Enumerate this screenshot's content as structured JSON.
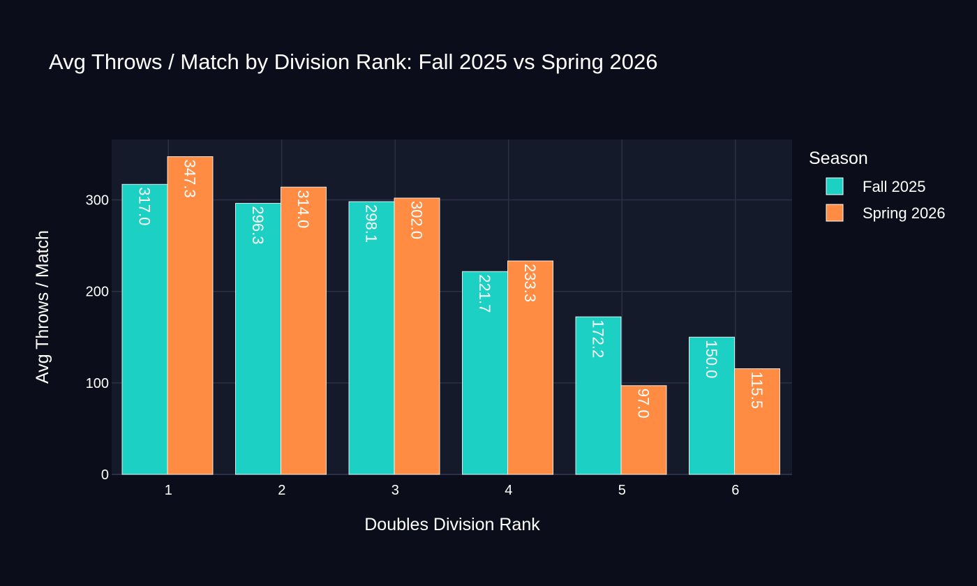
{
  "colors": {
    "background": "#0b0e1a",
    "plot_background": "#151a2b",
    "grid": "#2a3146",
    "fall": "#1cd1c4",
    "spring": "#ff8c42",
    "text": "#ffffff"
  },
  "chart_data": {
    "type": "bar",
    "title": "Avg Throws / Match by Division Rank: Fall 2025 vs Spring 2026",
    "xlabel": "Doubles Division Rank",
    "ylabel": "Avg Throws / Match",
    "categories": [
      "1",
      "2",
      "3",
      "4",
      "5",
      "6"
    ],
    "series": [
      {
        "name": "Fall 2025",
        "values": [
          317.0,
          296.3,
          298.1,
          221.7,
          172.2,
          150.0
        ],
        "labels": [
          "317.0",
          "296.3",
          "298.1",
          "221.7",
          "172.2",
          "150.0"
        ]
      },
      {
        "name": "Spring 2026",
        "values": [
          347.3,
          314.0,
          302.0,
          233.3,
          97.0,
          115.5
        ],
        "labels": [
          "347.3",
          "314.0",
          "302.0",
          "233.3",
          "97.0",
          "115.5"
        ]
      }
    ],
    "ylim": [
      0,
      366
    ],
    "yticks": [
      0,
      100,
      200,
      300
    ],
    "ytick_labels": [
      "0",
      "100",
      "200",
      "300"
    ],
    "grid": true,
    "legend": {
      "title": "Season",
      "placement": "right"
    }
  }
}
